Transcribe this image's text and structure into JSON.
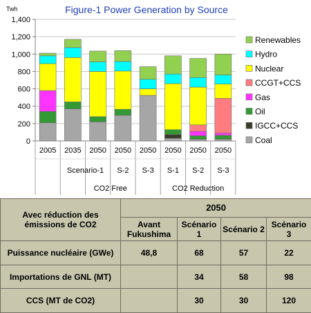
{
  "chart_data": {
    "type": "bar",
    "stacked": true,
    "title": "Figure-1 Power Generation by Source",
    "ylabel": "Twh",
    "ylim": [
      0,
      1400
    ],
    "yticks": [
      0,
      200,
      400,
      600,
      800,
      1000,
      1200,
      1400
    ],
    "grid": true,
    "legend_position": "right",
    "categories": [
      "2005",
      "2035",
      "2050",
      "2050",
      "2050",
      "2050",
      "2050",
      "2050"
    ],
    "scenario_labels": [
      {
        "label": "Scenario-1",
        "from": 1,
        "to": 2
      },
      {
        "label": "S-2",
        "from": 3,
        "to": 3
      },
      {
        "label": "S-3",
        "from": 4,
        "to": 4
      },
      {
        "label": "S-1",
        "from": 5,
        "to": 5
      },
      {
        "label": "S-2",
        "from": 6,
        "to": 6
      },
      {
        "label": "S-3",
        "from": 7,
        "to": 7
      }
    ],
    "group_labels": [
      {
        "label": "CO2 Free",
        "from": 1,
        "to": 4
      },
      {
        "label": "CO2 Reduction",
        "from": 5,
        "to": 7
      }
    ],
    "series": [
      {
        "name": "Coal",
        "color": "#a6a6a6",
        "values": [
          210,
          370,
          220,
          295,
          525,
          30,
          20,
          20
        ]
      },
      {
        "name": "IGCC+CCS",
        "color": "#3b3b2b",
        "values": [
          0,
          0,
          0,
          0,
          0,
          45,
          0,
          0
        ]
      },
      {
        "name": "Oil",
        "color": "#339933",
        "values": [
          130,
          80,
          60,
          70,
          0,
          55,
          40,
          45
        ]
      },
      {
        "name": "Gas",
        "color": "#ff33ff",
        "values": [
          240,
          0,
          0,
          0,
          0,
          0,
          50,
          25
        ]
      },
      {
        "name": "CCGT+CCS",
        "color": "#ff7c80",
        "values": [
          0,
          0,
          0,
          0,
          0,
          0,
          75,
          400
        ]
      },
      {
        "name": "Nuclear",
        "color": "#ffff00",
        "values": [
          310,
          510,
          520,
          440,
          75,
          530,
          435,
          165
        ]
      },
      {
        "name": "Hydro",
        "color": "#00ffff",
        "values": [
          90,
          115,
          110,
          110,
          110,
          110,
          110,
          105
        ]
      },
      {
        "name": "Renewables",
        "color": "#92d050",
        "values": [
          30,
          95,
          125,
          125,
          145,
          210,
          220,
          240
        ]
      }
    ],
    "legend_order": [
      "Renewables",
      "Hydro",
      "Nuclear",
      "CCGT+CCS",
      "Gas",
      "Oil",
      "IGCC+CCS",
      "Coal"
    ]
  },
  "table": {
    "header_label": "Avec réduction des émissions de CO2",
    "year_header": "2050",
    "col_headers": [
      "Avant Fukushima",
      "Scénario 1",
      "Scénario 2",
      "Scénario 3"
    ],
    "rows": [
      {
        "label": "Puissance nucléaire (GWe)",
        "values": [
          "48,8",
          "68",
          "57",
          "22"
        ]
      },
      {
        "label": "Importations de GNL (MT)",
        "values": [
          "",
          "34",
          "58",
          "98"
        ]
      },
      {
        "label": "CCS (MT de CO2)",
        "values": [
          "",
          "30",
          "30",
          "120"
        ]
      }
    ]
  }
}
